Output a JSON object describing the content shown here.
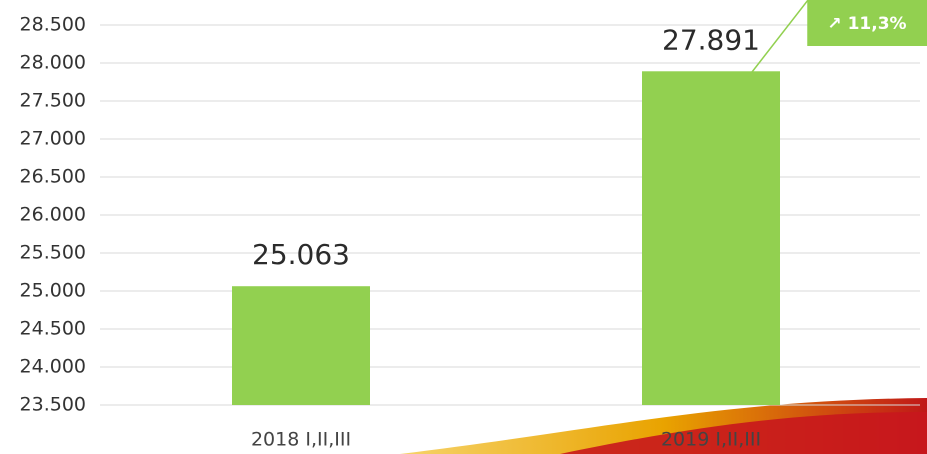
{
  "chart_data": {
    "type": "bar",
    "categories": [
      "2018 I,II,III",
      "2019 I,II,III"
    ],
    "values": [
      25063,
      27891
    ],
    "value_labels": [
      "25.063",
      "27.891"
    ],
    "color": "#92d050",
    "annotation": "↗ 11,3%",
    "ylim": [
      23500,
      28500
    ],
    "yticks": [
      {
        "value": 23500,
        "label": "23.500"
      },
      {
        "value": 24000,
        "label": "24.000"
      },
      {
        "value": 24500,
        "label": "24.500"
      },
      {
        "value": 25000,
        "label": "25.000"
      },
      {
        "value": 25500,
        "label": "25.500"
      },
      {
        "value": 26000,
        "label": "26.000"
      },
      {
        "value": 26500,
        "label": "26.500"
      },
      {
        "value": 27000,
        "label": "27.000"
      },
      {
        "value": 27500,
        "label": "27.500"
      },
      {
        "value": 28000,
        "label": "28.000"
      },
      {
        "value": 28500,
        "label": "28.500"
      }
    ],
    "grid": true
  }
}
